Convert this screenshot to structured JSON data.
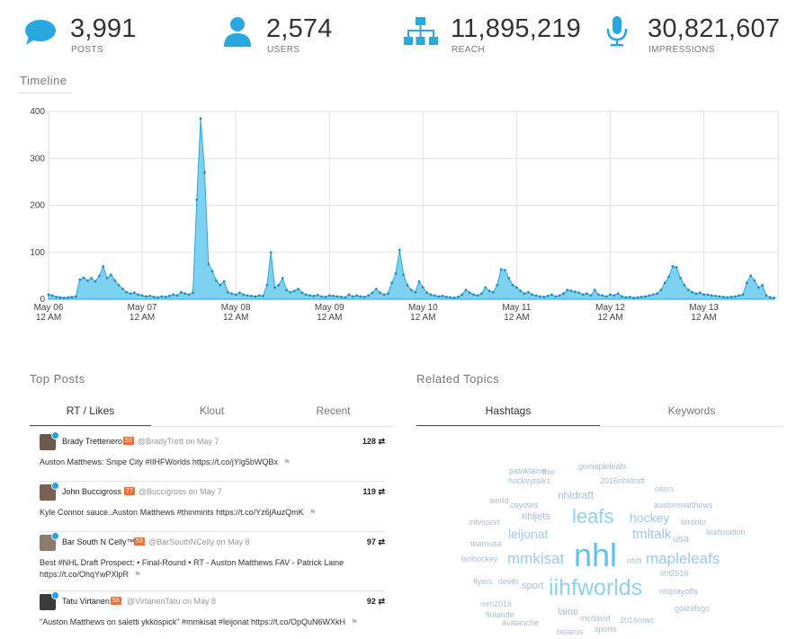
{
  "stats": [
    {
      "value": "3,991",
      "label": "POSTS",
      "icon": "speech-bubble-icon"
    },
    {
      "value": "2,574",
      "label": "USERS",
      "icon": "user-icon"
    },
    {
      "value": "11,895,219",
      "label": "REACH",
      "icon": "network-icon"
    },
    {
      "value": "30,821,607",
      "label": "IMPRESSIONS",
      "icon": "microphone-icon"
    }
  ],
  "colors": {
    "accent": "#29a8e0",
    "area_fill": "#7fd1f2"
  },
  "timeline": {
    "title": "Timeline"
  },
  "chart_data": {
    "type": "area",
    "title": "Timeline",
    "y_ticks": [
      "400",
      "300",
      "200",
      "100",
      "0"
    ],
    "ylim": [
      0,
      400
    ],
    "x_ticks": [
      {
        "line1": "May 06",
        "line2": "12 AM"
      },
      {
        "line1": "May 07",
        "line2": "12 AM"
      },
      {
        "line1": "May 08",
        "line2": "12 AM"
      },
      {
        "line1": "May 09",
        "line2": "12 AM"
      },
      {
        "line1": "May 10",
        "line2": "12 AM"
      },
      {
        "line1": "May 11",
        "line2": "12 AM"
      },
      {
        "line1": "May 12",
        "line2": "12 AM"
      },
      {
        "line1": "May 13",
        "line2": "12 AM"
      }
    ],
    "hours_total": 187,
    "values": [
      10,
      8,
      5,
      4,
      3,
      4,
      5,
      6,
      42,
      46,
      40,
      45,
      38,
      50,
      70,
      45,
      52,
      40,
      30,
      22,
      15,
      12,
      14,
      10,
      8,
      6,
      7,
      5,
      4,
      6,
      5,
      7,
      10,
      8,
      15,
      12,
      10,
      14,
      212,
      385,
      270,
      75,
      60,
      40,
      30,
      38,
      15,
      12,
      10,
      14,
      10,
      8,
      7,
      6,
      8,
      7,
      30,
      100,
      25,
      30,
      45,
      20,
      15,
      18,
      22,
      14,
      10,
      8,
      7,
      9,
      6,
      5,
      8,
      7,
      6,
      5,
      4,
      10,
      6,
      8,
      6,
      5,
      8,
      14,
      22,
      14,
      10,
      12,
      35,
      55,
      105,
      52,
      30,
      20,
      15,
      38,
      25,
      14,
      10,
      8,
      6,
      7,
      5,
      4,
      3,
      5,
      10,
      20,
      14,
      10,
      8,
      12,
      25,
      18,
      15,
      30,
      64,
      62,
      45,
      30,
      25,
      18,
      12,
      15,
      10,
      8,
      6,
      5,
      7,
      10,
      6,
      8,
      12,
      20,
      18,
      16,
      14,
      10,
      12,
      8,
      20,
      10,
      8,
      6,
      10,
      8,
      12,
      6,
      4,
      5,
      3,
      4,
      5,
      6,
      8,
      10,
      12,
      20,
      35,
      48,
      70,
      68,
      45,
      30,
      20,
      15,
      12,
      14,
      10,
      10,
      8,
      7,
      6,
      5,
      4,
      5,
      6,
      8,
      10,
      35,
      50,
      40,
      25,
      30,
      8,
      4,
      3
    ]
  },
  "top_posts": {
    "title": "Top Posts",
    "tabs": [
      "RT / Likes",
      "Klout",
      "Recent"
    ],
    "items": [
      {
        "name": "Brady Trettenero",
        "klout": "53",
        "handle": "@BradyTrett on May 7",
        "count": "128",
        "text": "Auston Matthews: Snipe City #IIHFWorlds https://t.co/jYlg5bWQBx"
      },
      {
        "name": "John Buccigross",
        "klout": "77",
        "handle": "@Buccigross on May 7",
        "count": "119",
        "text": "Kyle Connor sauce..Auston Matthews #thinmints https://t.co/Yz6jAuzQmK"
      },
      {
        "name": "Bar South N Celly™",
        "klout": "53",
        "handle": "@BarSouthNCelly on May 8",
        "count": "97",
        "text": "Best #NHL Draft Prospect: • Final-Round • RT - Auston Matthews FAV - Patrick Laine https://t.co/OhqYwPXlpR"
      },
      {
        "name": "Tatu Virtanen",
        "klout": "56",
        "handle": "@VirtanenTatu on May 8",
        "count": "92",
        "text": "\"Auston Matthews on saletti ykköspick\" #mmkisat #leijonat https://t.co/OpQuN6WXkH"
      }
    ]
  },
  "related": {
    "title": "Related Topics",
    "tabs": [
      "Hashtags",
      "Keywords"
    ],
    "cloud": [
      {
        "w": "patriklaine",
        "s": 9
      },
      {
        "w": "gomapleleafs",
        "s": 9
      },
      {
        "w": "hockeytalks",
        "s": 9
      },
      {
        "w": "thw",
        "s": 9
      },
      {
        "w": "2016nhldraft",
        "s": 9
      },
      {
        "w": "oilers",
        "s": 9
      },
      {
        "w": "nhldraft",
        "s": 12
      },
      {
        "w": "world",
        "s": 9
      },
      {
        "w": "coyotes",
        "s": 9
      },
      {
        "w": "austonmatthews",
        "s": 9
      },
      {
        "w": "nhljets",
        "s": 11
      },
      {
        "w": "leafs",
        "s": 22
      },
      {
        "w": "hockey",
        "s": 14
      },
      {
        "w": "mtvsport",
        "s": 9
      },
      {
        "w": "toronto",
        "s": 9
      },
      {
        "w": "leijonat",
        "s": 14
      },
      {
        "w": "tmltalk",
        "s": 15
      },
      {
        "w": "leafsnation",
        "s": 9
      },
      {
        "w": "usa",
        "s": 11
      },
      {
        "w": "teamusa",
        "s": 9
      },
      {
        "w": "nhl",
        "s": 36
      },
      {
        "w": "mmkisat",
        "s": 17
      },
      {
        "w": "mapleleafs",
        "s": 17
      },
      {
        "w": "tsnhockey",
        "s": 9
      },
      {
        "w": "nhlfi",
        "s": 9
      },
      {
        "w": "iihf2016",
        "s": 9
      },
      {
        "w": "flyers",
        "s": 9
      },
      {
        "w": "devils",
        "s": 9
      },
      {
        "w": "sport",
        "s": 11
      },
      {
        "w": "iihfworlds",
        "s": 25
      },
      {
        "w": "nhlplayoffs",
        "s": 9
      },
      {
        "w": "mm2016",
        "s": 9
      },
      {
        "w": "goleafsgo",
        "s": 9
      },
      {
        "w": "finlande",
        "s": 9
      },
      {
        "w": "laine",
        "s": 11
      },
      {
        "w": "mcdavid",
        "s": 9
      },
      {
        "w": "2016mwc",
        "s": 9
      },
      {
        "w": "avalanche",
        "s": 9
      },
      {
        "w": "sports",
        "s": 9
      },
      {
        "w": "belarus",
        "s": 9
      }
    ]
  }
}
